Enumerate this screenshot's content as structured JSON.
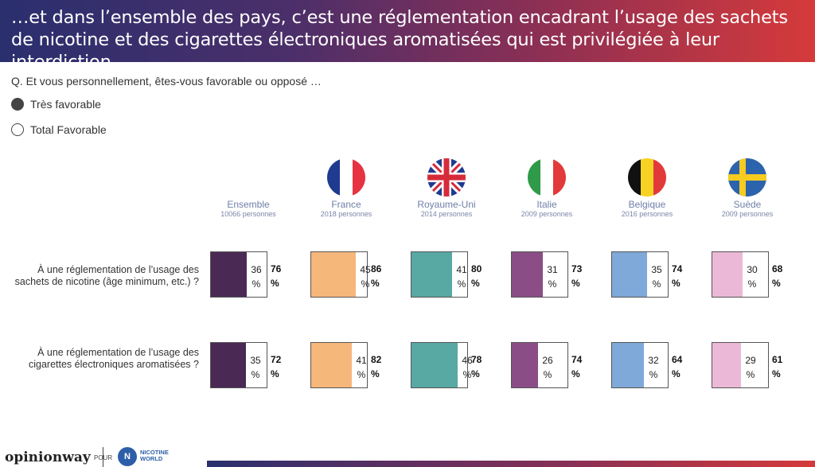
{
  "header": {
    "title": "…et dans l’ensemble des pays, c’est une réglementation encadrant l’usage des sachets de nicotine et des cigarettes électroniques aromatisées qui est privilégiée à leur interdiction."
  },
  "question": "Q. Et vous personnellement, êtes-vous favorable ou opposé …",
  "legend": {
    "very_favorable": "Très favorable",
    "total_favorable": "Total Favorable"
  },
  "chart_data": {
    "type": "table",
    "unit": "%",
    "columns": [
      {
        "name": "Ensemble",
        "n": "10066 personnes",
        "color": "#4a2a55",
        "flag": null
      },
      {
        "name": "France",
        "n": "2018 personnes",
        "color": "#f6b77a",
        "flag": "france-flag"
      },
      {
        "name": "Royaume-Uni",
        "n": "2014 personnes",
        "color": "#58a8a4",
        "flag": "uk-flag"
      },
      {
        "name": "Italie",
        "n": "2009 personnes",
        "color": "#8b4d85",
        "flag": "italy-flag"
      },
      {
        "name": "Belgique",
        "n": "2016 personnes",
        "color": "#7ea9d8",
        "flag": "belgium-flag"
      },
      {
        "name": "Suède",
        "n": "2009 personnes",
        "color": "#ecb8d7",
        "flag": "sweden-flag"
      }
    ],
    "rows": [
      {
        "label": "À une réglementation de l’usage des sachets de nicotine (âge minimum, etc.) ?",
        "tres_favorable": [
          36,
          45,
          41,
          31,
          35,
          30
        ],
        "total_favorable": [
          76,
          86,
          80,
          73,
          74,
          68
        ]
      },
      {
        "label": "À une réglementation de l’usage des cigarettes électroniques aromatisées ?",
        "tres_favorable": [
          35,
          41,
          46,
          26,
          32,
          29
        ],
        "total_favorable": [
          72,
          82,
          78,
          74,
          64,
          61
        ]
      }
    ]
  },
  "footer": {
    "brand": "opinionway",
    "pour": "POUR",
    "partner_line1": "NICOTINE",
    "partner_line2": "WORLD"
  }
}
